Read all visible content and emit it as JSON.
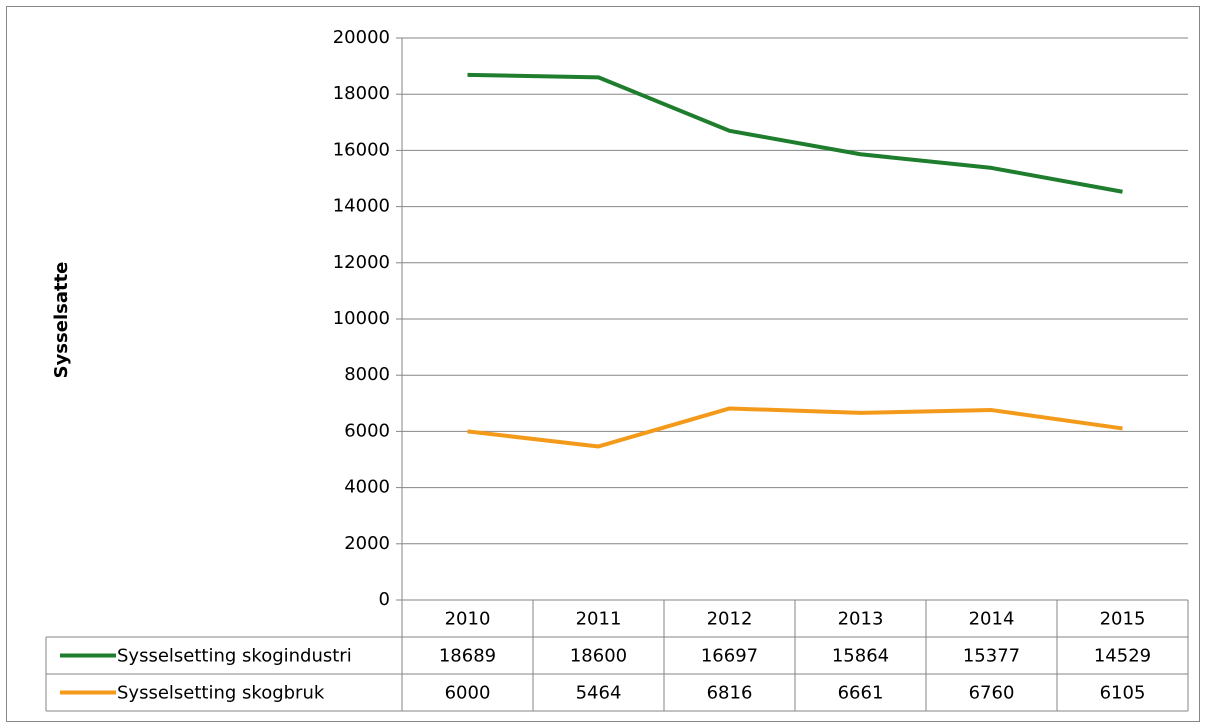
{
  "chart_data": {
    "type": "line",
    "ylabel": "Sysselsatte",
    "categories": [
      "2010",
      "2011",
      "2012",
      "2013",
      "2014",
      "2015"
    ],
    "series": [
      {
        "name": "Sysselsetting skogindustri",
        "color": "#1f7d2e",
        "values": [
          18689,
          18600,
          16697,
          15864,
          15377,
          14529
        ]
      },
      {
        "name": "Sysselsetting skogbruk",
        "color": "#f39a1b",
        "values": [
          6000,
          5464,
          6816,
          6661,
          6760,
          6105
        ]
      }
    ],
    "ylim": [
      0,
      20000
    ],
    "yticks": [
      0,
      2000,
      4000,
      6000,
      8000,
      10000,
      12000,
      14000,
      16000,
      18000,
      20000
    ],
    "grid": true,
    "data_table": true
  }
}
